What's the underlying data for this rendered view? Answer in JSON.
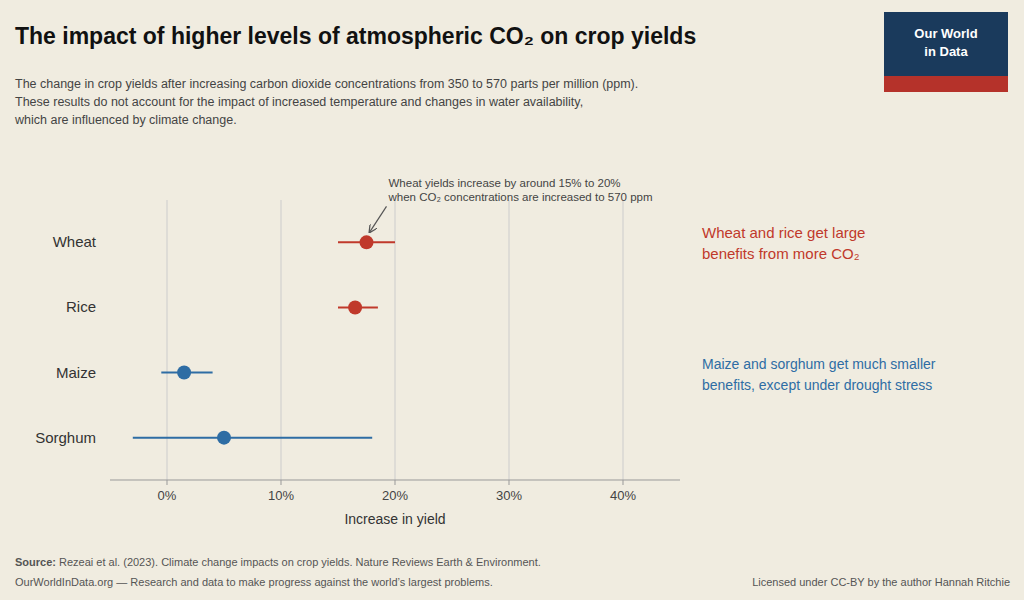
{
  "chart_data": {
    "type": "dot",
    "orientation": "horizontal",
    "title": "The impact of higher levels of atmospheric CO₂ on crop yields",
    "subtitle": "The change in crop yields after increasing carbon dioxide concentrations from 350 to 570 parts per million (ppm).\nThese results do not account for the impact of increased temperature and changes in water availability,\nwhich are influenced by climate change.",
    "xlabel": "Increase in yield",
    "categories": [
      "Wheat",
      "Rice",
      "Maize",
      "Sorghum"
    ],
    "values": [
      17.5,
      16.5,
      1.5,
      5.0
    ],
    "errors_low": [
      2.5,
      1.5,
      2.0,
      8.0
    ],
    "errors_high": [
      2.5,
      2.0,
      2.5,
      13.0
    ],
    "colors": [
      "#c0392b",
      "#c0392b",
      "#2e6da4",
      "#2e6da4"
    ],
    "xlim": [
      -5,
      45
    ],
    "xticks": [
      {
        "value": 0,
        "label": "0%"
      },
      {
        "value": 10,
        "label": "10%"
      },
      {
        "value": 20,
        "label": "20%"
      },
      {
        "value": 30,
        "label": "30%"
      },
      {
        "value": 40,
        "label": "40%"
      }
    ],
    "grid": true,
    "annotations": [
      {
        "text": "Wheat yields increase by around 15% to 20%\nwhen CO₂ concentrations are increased to 570 ppm",
        "category": "Wheat"
      }
    ],
    "notes": [
      {
        "text": "Wheat and rice get large\nbenefits from more CO₂",
        "color": "#c0392b"
      },
      {
        "text": "Maize and sorghum get much smaller\nbenefits, except under drought stress",
        "color": "#2e6da4"
      }
    ],
    "logo": {
      "text": [
        "Our World",
        "in Data"
      ],
      "color": "#1a3a5c",
      "stripe_color": "#b5322a"
    },
    "source_label": "Source:",
    "source": " Rezeai et al. (2023). Climate change impacts on crop yields. Nature Reviews Earth & Environment.",
    "footer": "OurWorldInData.org — Research and data to make progress against the world’s largest problems.",
    "license": "Licensed under CC-BY by the author Hannah Ritchie"
  }
}
